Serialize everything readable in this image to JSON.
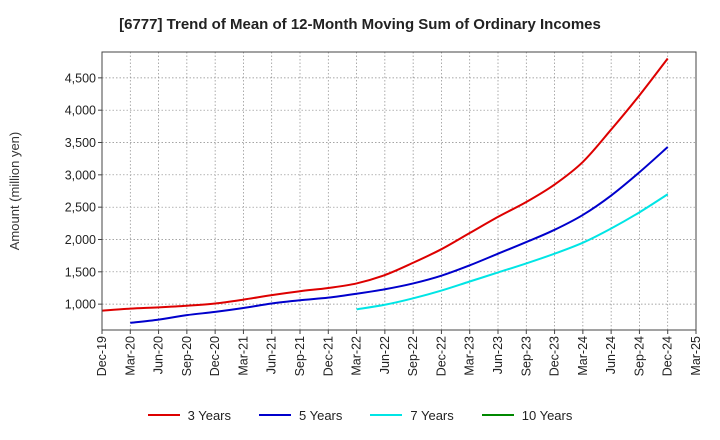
{
  "chart_data": {
    "type": "line",
    "title": "[6777]  Trend of Mean of 12-Month Moving Sum of Ordinary Incomes",
    "xlabel": "",
    "ylabel": "Amount (million yen)",
    "ylim": [
      600,
      4900
    ],
    "yticks": [
      1000,
      1500,
      2000,
      2500,
      3000,
      3500,
      4000,
      4500
    ],
    "ytick_labels": [
      "1,000",
      "1,500",
      "2,000",
      "2,500",
      "3,000",
      "3,500",
      "4,000",
      "4,500"
    ],
    "categories": [
      "Dec-19",
      "Mar-20",
      "Jun-20",
      "Sep-20",
      "Dec-20",
      "Mar-21",
      "Jun-21",
      "Sep-21",
      "Dec-21",
      "Mar-22",
      "Jun-22",
      "Sep-22",
      "Dec-22",
      "Mar-23",
      "Jun-23",
      "Sep-23",
      "Dec-23",
      "Mar-24",
      "Jun-24",
      "Sep-24",
      "Dec-24",
      "Mar-25"
    ],
    "grid": true,
    "legend_position": "bottom",
    "series": [
      {
        "name": "3 Years",
        "color": "#dd0000",
        "values": [
          900,
          930,
          950,
          975,
          1010,
          1070,
          1140,
          1200,
          1250,
          1320,
          1450,
          1640,
          1850,
          2100,
          2350,
          2580,
          2850,
          3200,
          3700,
          4230,
          4800,
          null
        ]
      },
      {
        "name": "5 Years",
        "color": "#0000cc",
        "values": [
          null,
          710,
          760,
          830,
          880,
          940,
          1010,
          1060,
          1100,
          1160,
          1230,
          1320,
          1440,
          1600,
          1780,
          1960,
          2150,
          2380,
          2680,
          3040,
          3430,
          null
        ]
      },
      {
        "name": "7 Years",
        "color": "#00e5e5",
        "values": [
          null,
          null,
          null,
          null,
          null,
          null,
          null,
          null,
          null,
          920,
          990,
          1090,
          1210,
          1350,
          1490,
          1630,
          1780,
          1950,
          2170,
          2420,
          2700,
          null
        ]
      },
      {
        "name": "10 Years",
        "color": "#008800",
        "values": [
          null,
          null,
          null,
          null,
          null,
          null,
          null,
          null,
          null,
          null,
          null,
          null,
          null,
          null,
          null,
          null,
          null,
          null,
          null,
          null,
          null,
          null
        ]
      }
    ]
  }
}
